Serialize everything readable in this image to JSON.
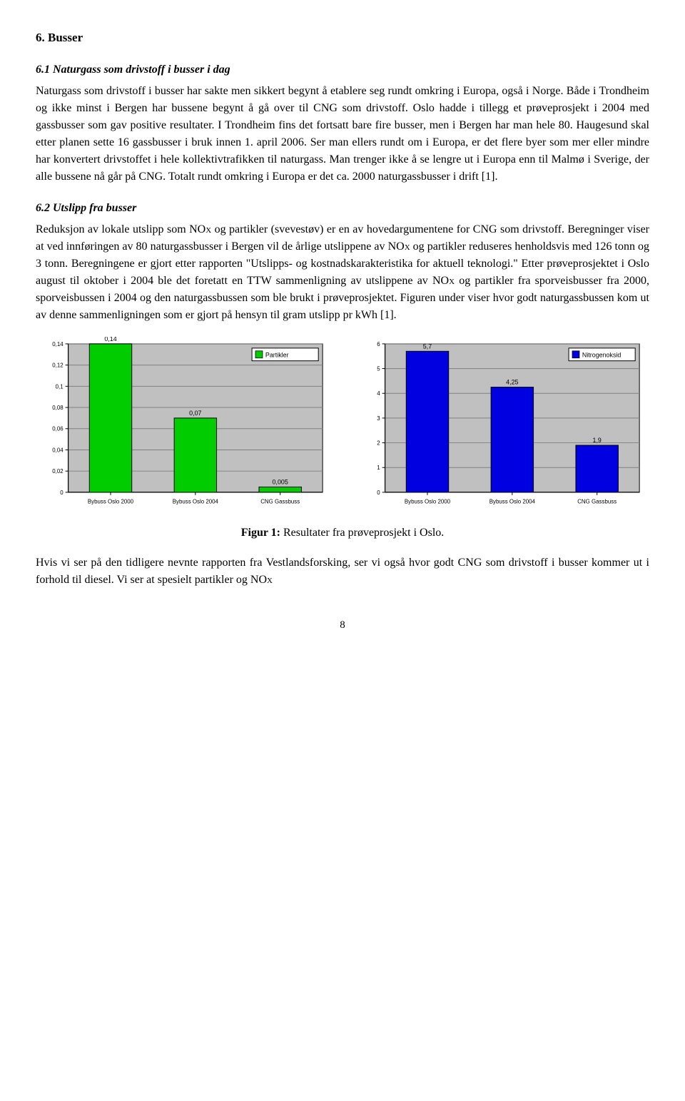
{
  "section": {
    "heading": "6. Busser",
    "sub1_heading": "6.1 Naturgass som drivstoff i busser i dag",
    "para1": "Naturgass som drivstoff i busser har sakte men sikkert begynt å etablere seg rundt omkring i Europa, også i Norge. Både i Trondheim og ikke minst i Bergen har bussene begynt å gå over til CNG som drivstoff. Oslo hadde i tillegg et prøveprosjekt i 2004 med gassbusser som gav positive resultater. I Trondheim fins det fortsatt bare fire busser, men i Bergen har man hele 80. Haugesund skal etter planen sette 16 gassbusser i bruk innen 1. april 2006. Ser man ellers rundt om i Europa, er det flere byer som mer eller mindre har konvertert drivstoffet i hele kollektivtrafikken til naturgass. Man trenger ikke å se lengre ut i Europa enn til Malmø i Sverige, der alle bussene nå går på CNG. Totalt rundt omkring i Europa er det ca. 2000 naturgassbusser i drift [1].",
    "sub2_heading": "6.2 Utslipp fra busser",
    "para2a": "Reduksjon av lokale utslipp som NO",
    "para2b": " og partikler (svevestøv) er en av hovedargumentene for CNG som drivstoff. Beregninger viser at ved innføringen av 80 naturgassbusser i Bergen vil de årlige utslippene av NO",
    "para2c": " og partikler reduseres henholdsvis med 126 tonn og 3 tonn. Beregningene er gjort etter rapporten \"Utslipps- og kostnadskarakteristika for aktuell teknologi.\" Etter prøveprosjektet i Oslo august til oktober i 2004 ble det foretatt en TTW sammenligning av utslippene av NO",
    "para2d": " og partikler fra sporveisbusser fra 2000, sporveisbussen i 2004 og den naturgassbussen som ble brukt i prøveprosjektet. Figuren under viser hvor godt naturgassbussen kom ut av denne sammenligningen som er gjort på hensyn til gram utslipp pr kWh [1].",
    "sub_x": "X"
  },
  "chart_left": {
    "type": "bar",
    "categories": [
      "Bybuss Oslo 2000",
      "Bybuss Oslo 2004",
      "CNG Gassbuss"
    ],
    "values": [
      0.14,
      0.07,
      0.005
    ],
    "value_labels": [
      "0,14",
      "0,07",
      "0,005"
    ],
    "bar_color": "#00cc00",
    "bar_border": "#000000",
    "legend_label": "Partikler",
    "legend_fill": "#00cc00",
    "ylim": [
      0,
      0.14
    ],
    "yticks": [
      "0",
      "0,02",
      "0,04",
      "0,06",
      "0,08",
      "0,1",
      "0,12",
      "0,14"
    ],
    "plot_bg": "#c0c0c0",
    "grid_color": "#808080",
    "axis_color": "#000000",
    "tick_font": 8,
    "label_font": 9
  },
  "chart_right": {
    "type": "bar",
    "categories": [
      "Bybuss Oslo 2000",
      "Bybuss Oslo 2004",
      "CNG Gassbuss"
    ],
    "values": [
      5.7,
      4.25,
      1.9
    ],
    "value_labels": [
      "5,7",
      "4,25",
      "1,9"
    ],
    "bar_color": "#0000e0",
    "bar_border": "#000000",
    "legend_label": "Nitrogenoksid",
    "legend_fill": "#0000e0",
    "ylim": [
      0,
      6
    ],
    "yticks": [
      "0",
      "1",
      "2",
      "3",
      "4",
      "5",
      "6"
    ],
    "plot_bg": "#c0c0c0",
    "grid_color": "#808080",
    "axis_color": "#000000",
    "tick_font": 8,
    "label_font": 9
  },
  "caption": {
    "bold": "Figur 1:",
    "rest": " Resultater fra prøveprosjekt i Oslo."
  },
  "para3a": "Hvis vi ser på den tidligere nevnte rapporten fra Vestlandsforsking, ser vi også hvor godt CNG som drivstoff i busser kommer ut i forhold til diesel. Vi ser at spesielt partikler og NO",
  "para3_sub": "X",
  "page": "8"
}
